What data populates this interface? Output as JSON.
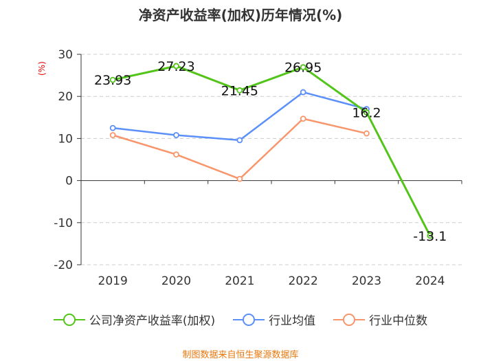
{
  "chart_data": {
    "type": "line",
    "title": "净资产收益率(加权)历年情况(%)",
    "ylabel": "(%)",
    "xlabel": "",
    "categories": [
      "2019",
      "2020",
      "2021",
      "2022",
      "2023",
      "2024"
    ],
    "ylim": [
      -20,
      30
    ],
    "yticks": [
      30,
      20,
      10,
      0,
      -10,
      -20
    ],
    "grid": true,
    "legend_position": "bottom",
    "series": [
      {
        "name": "公司净资产收益率(加权)",
        "color": "#52c41a",
        "values": [
          23.93,
          27.23,
          21.45,
          26.95,
          16.2,
          -13.1
        ],
        "labels": [
          "23.93",
          "27.23",
          "21.45",
          "26.95",
          "16.2",
          "-13.1"
        ]
      },
      {
        "name": "行业均值",
        "color": "#5b8ff9",
        "values": [
          12.5,
          10.8,
          9.6,
          21.0,
          17.0,
          null
        ]
      },
      {
        "name": "行业中位数",
        "color": "#f8956b",
        "values": [
          10.8,
          6.2,
          0.4,
          14.7,
          11.2,
          null
        ]
      }
    ]
  },
  "footer": {
    "source": "制图数据来自恒生聚源数据库"
  }
}
